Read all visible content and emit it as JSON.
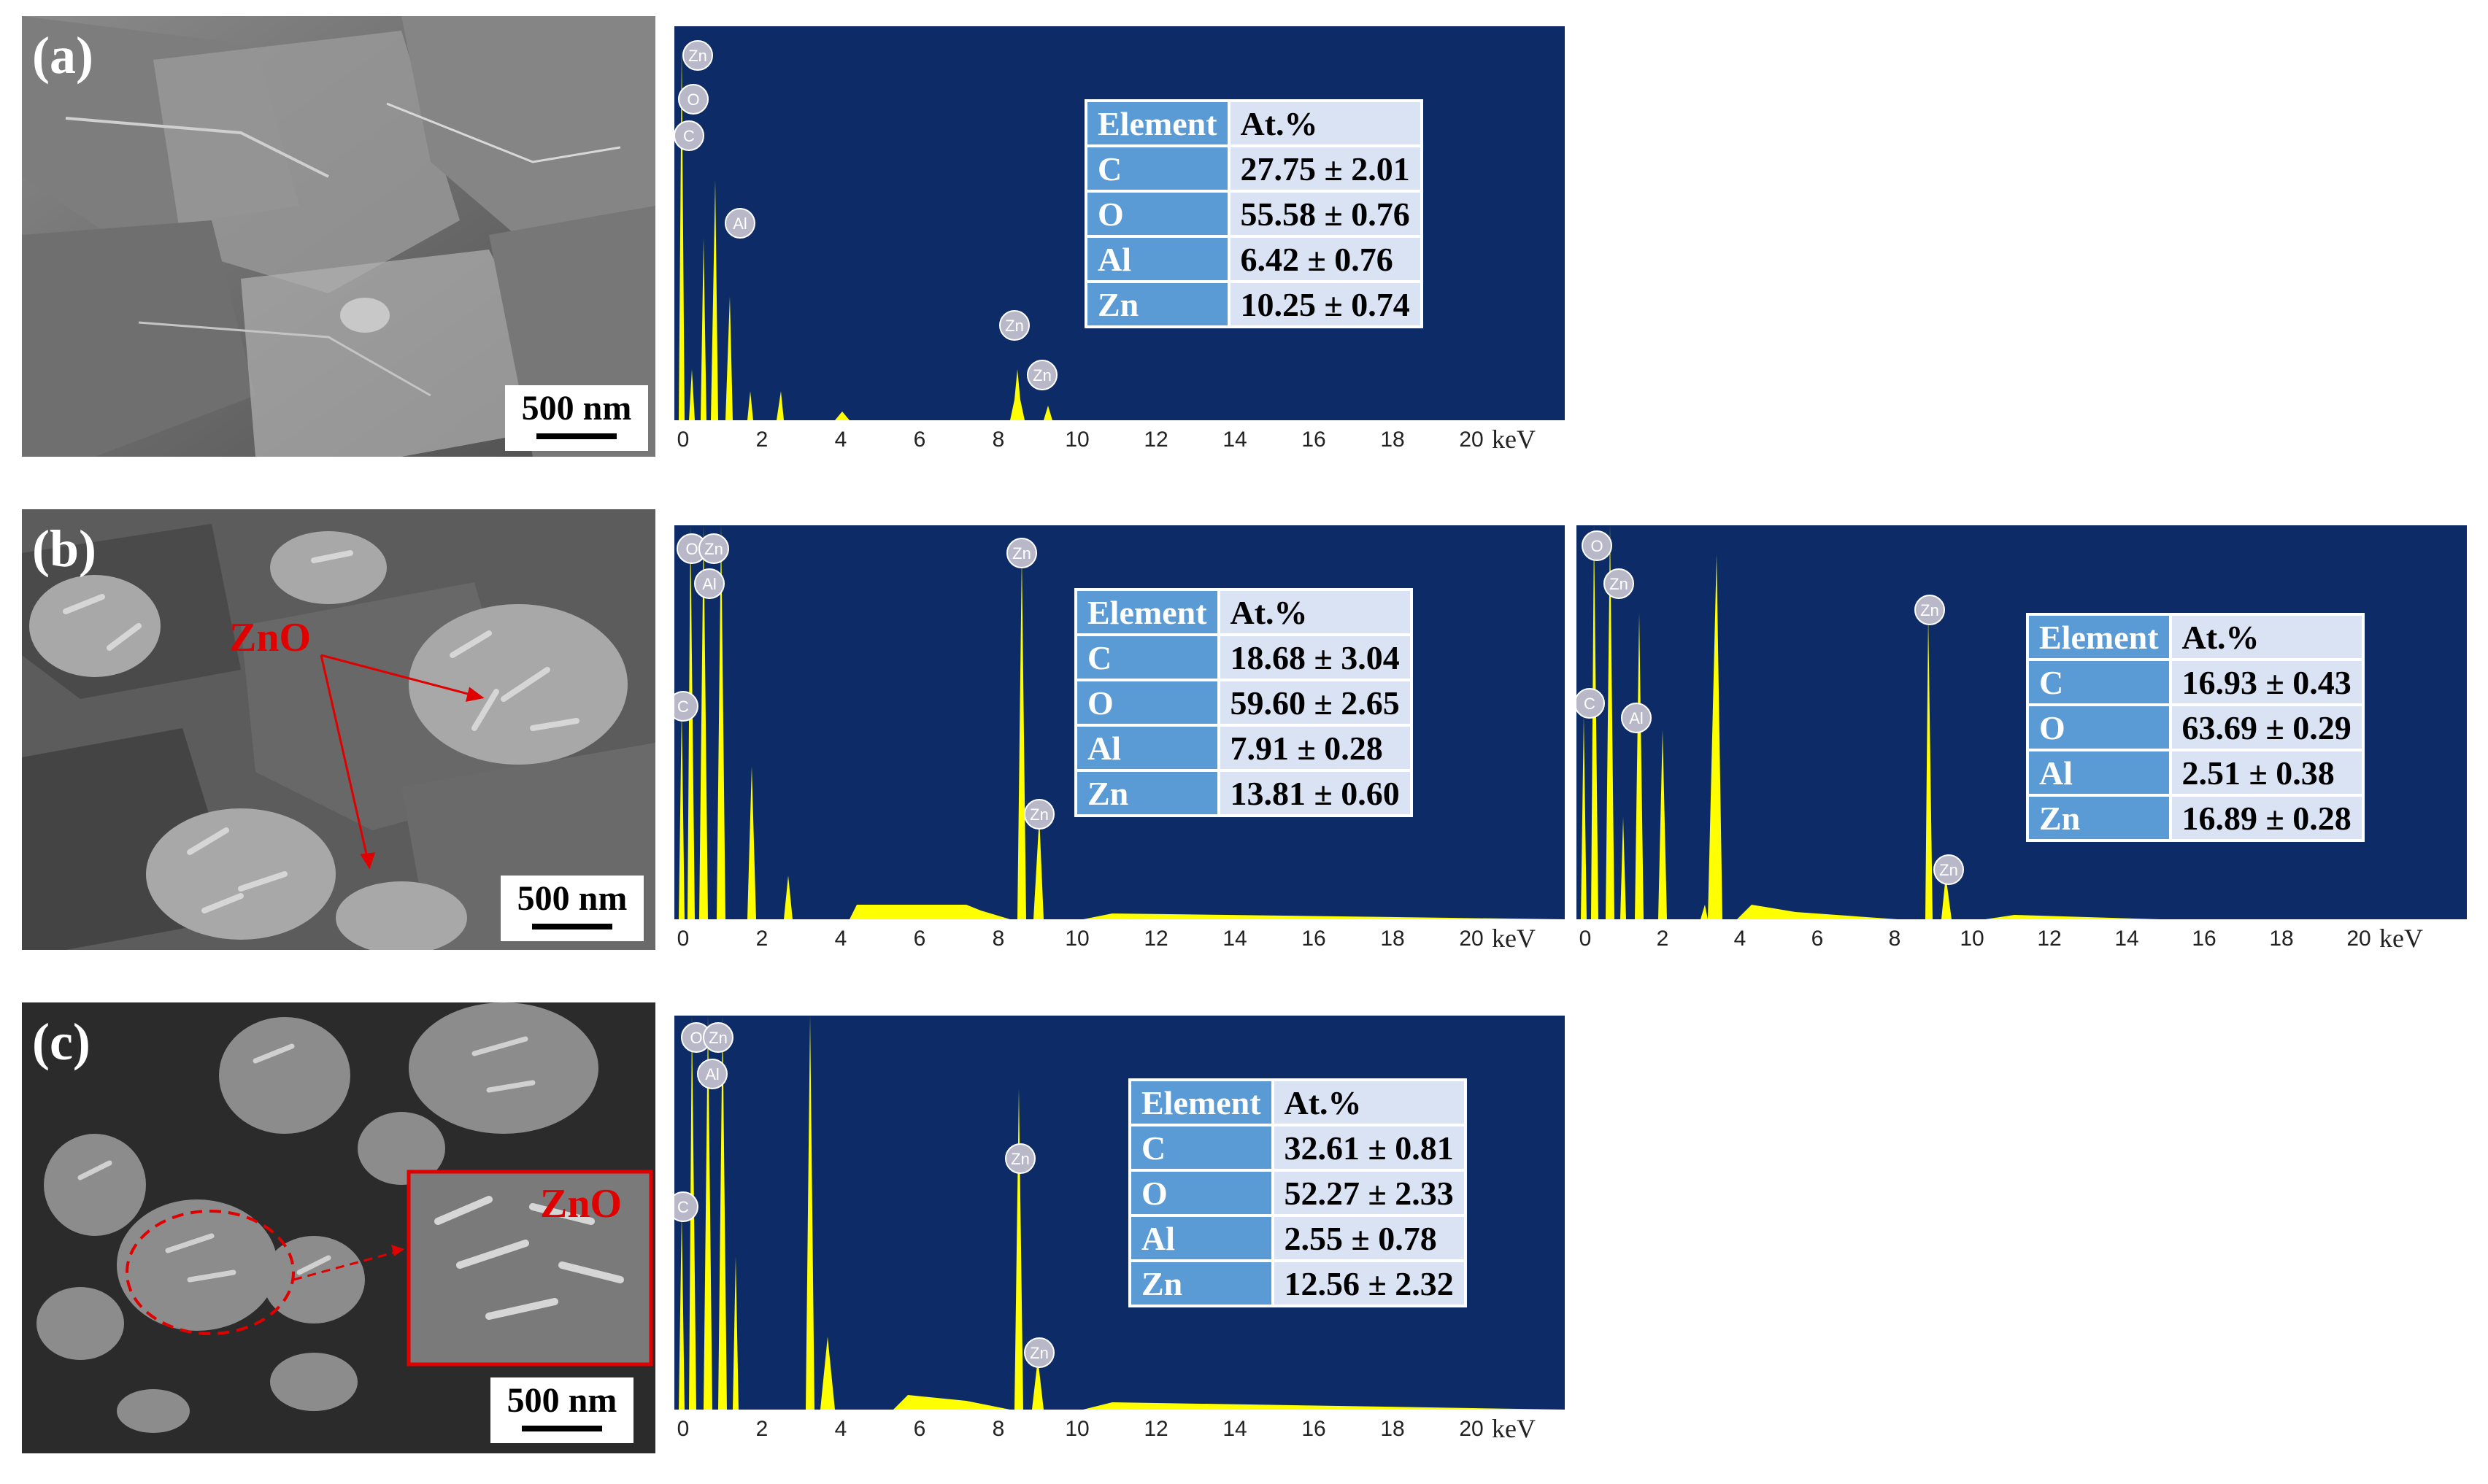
{
  "panels": [
    {
      "label": "(a)",
      "scale_bar": "500 nm"
    },
    {
      "label": "(b)",
      "scale_bar": "500 nm",
      "annotation": "ZnO"
    },
    {
      "label": "(c)",
      "scale_bar": "500 nm",
      "annotation": "ZnO"
    }
  ],
  "colors": {
    "spectrum_bg": "#0d2b66",
    "peak_fill": "#ffff00",
    "table_header": "#5b9bd5",
    "table_cell": "#dae3f3",
    "annotation": "#e00000"
  },
  "edx_spectra": [
    {
      "id": "a",
      "x_ticks": [
        "0",
        "2",
        "4",
        "6",
        "8",
        "10",
        "12",
        "14",
        "16",
        "18",
        "20"
      ],
      "x_unit": "keV",
      "peak_labels": [
        "C",
        "O",
        "Zn",
        "Al",
        "Zn",
        "Zn"
      ],
      "table": {
        "header": [
          "Element",
          "At.%"
        ],
        "rows": [
          [
            "C",
            "27.75 ± 2.01"
          ],
          [
            "O",
            "55.58 ± 0.76"
          ],
          [
            "Al",
            "6.42 ± 0.76"
          ],
          [
            "Zn",
            "10.25 ± 0.74"
          ]
        ]
      }
    },
    {
      "id": "b1",
      "x_ticks": [
        "0",
        "2",
        "4",
        "6",
        "8",
        "10",
        "12",
        "14",
        "16",
        "18",
        "20"
      ],
      "x_unit": "keV",
      "peak_labels": [
        "C",
        "O",
        "Zn",
        "Al",
        "Zn",
        "Zn"
      ],
      "table": {
        "header": [
          "Element",
          "At.%"
        ],
        "rows": [
          [
            "C",
            "18.68 ± 3.04"
          ],
          [
            "O",
            "59.60 ± 2.65"
          ],
          [
            "Al",
            "7.91 ± 0.28"
          ],
          [
            "Zn",
            "13.81 ± 0.60"
          ]
        ]
      }
    },
    {
      "id": "b2",
      "x_ticks": [
        "0",
        "2",
        "4",
        "6",
        "8",
        "10",
        "12",
        "14",
        "16",
        "18",
        "20"
      ],
      "x_unit": "keV",
      "peak_labels": [
        "C",
        "O",
        "Zn",
        "Al",
        "Zn",
        "Zn"
      ],
      "table": {
        "header": [
          "Element",
          "At.%"
        ],
        "rows": [
          [
            "C",
            "16.93 ± 0.43"
          ],
          [
            "O",
            "63.69 ± 0.29"
          ],
          [
            "Al",
            "2.51 ± 0.38"
          ],
          [
            "Zn",
            "16.89 ± 0.28"
          ]
        ]
      }
    },
    {
      "id": "c",
      "x_ticks": [
        "0",
        "2",
        "4",
        "6",
        "8",
        "10",
        "12",
        "14",
        "16",
        "18",
        "20"
      ],
      "x_unit": "keV",
      "peak_labels": [
        "C",
        "O",
        "Zn",
        "Al",
        "Zn",
        "Zn"
      ],
      "table": {
        "header": [
          "Element",
          "At.%"
        ],
        "rows": [
          [
            "C",
            "32.61 ± 0.81"
          ],
          [
            "O",
            "52.27 ± 2.33"
          ],
          [
            "Al",
            "2.55 ± 0.78"
          ],
          [
            "Zn",
            "12.56 ± 2.32"
          ]
        ]
      }
    }
  ]
}
